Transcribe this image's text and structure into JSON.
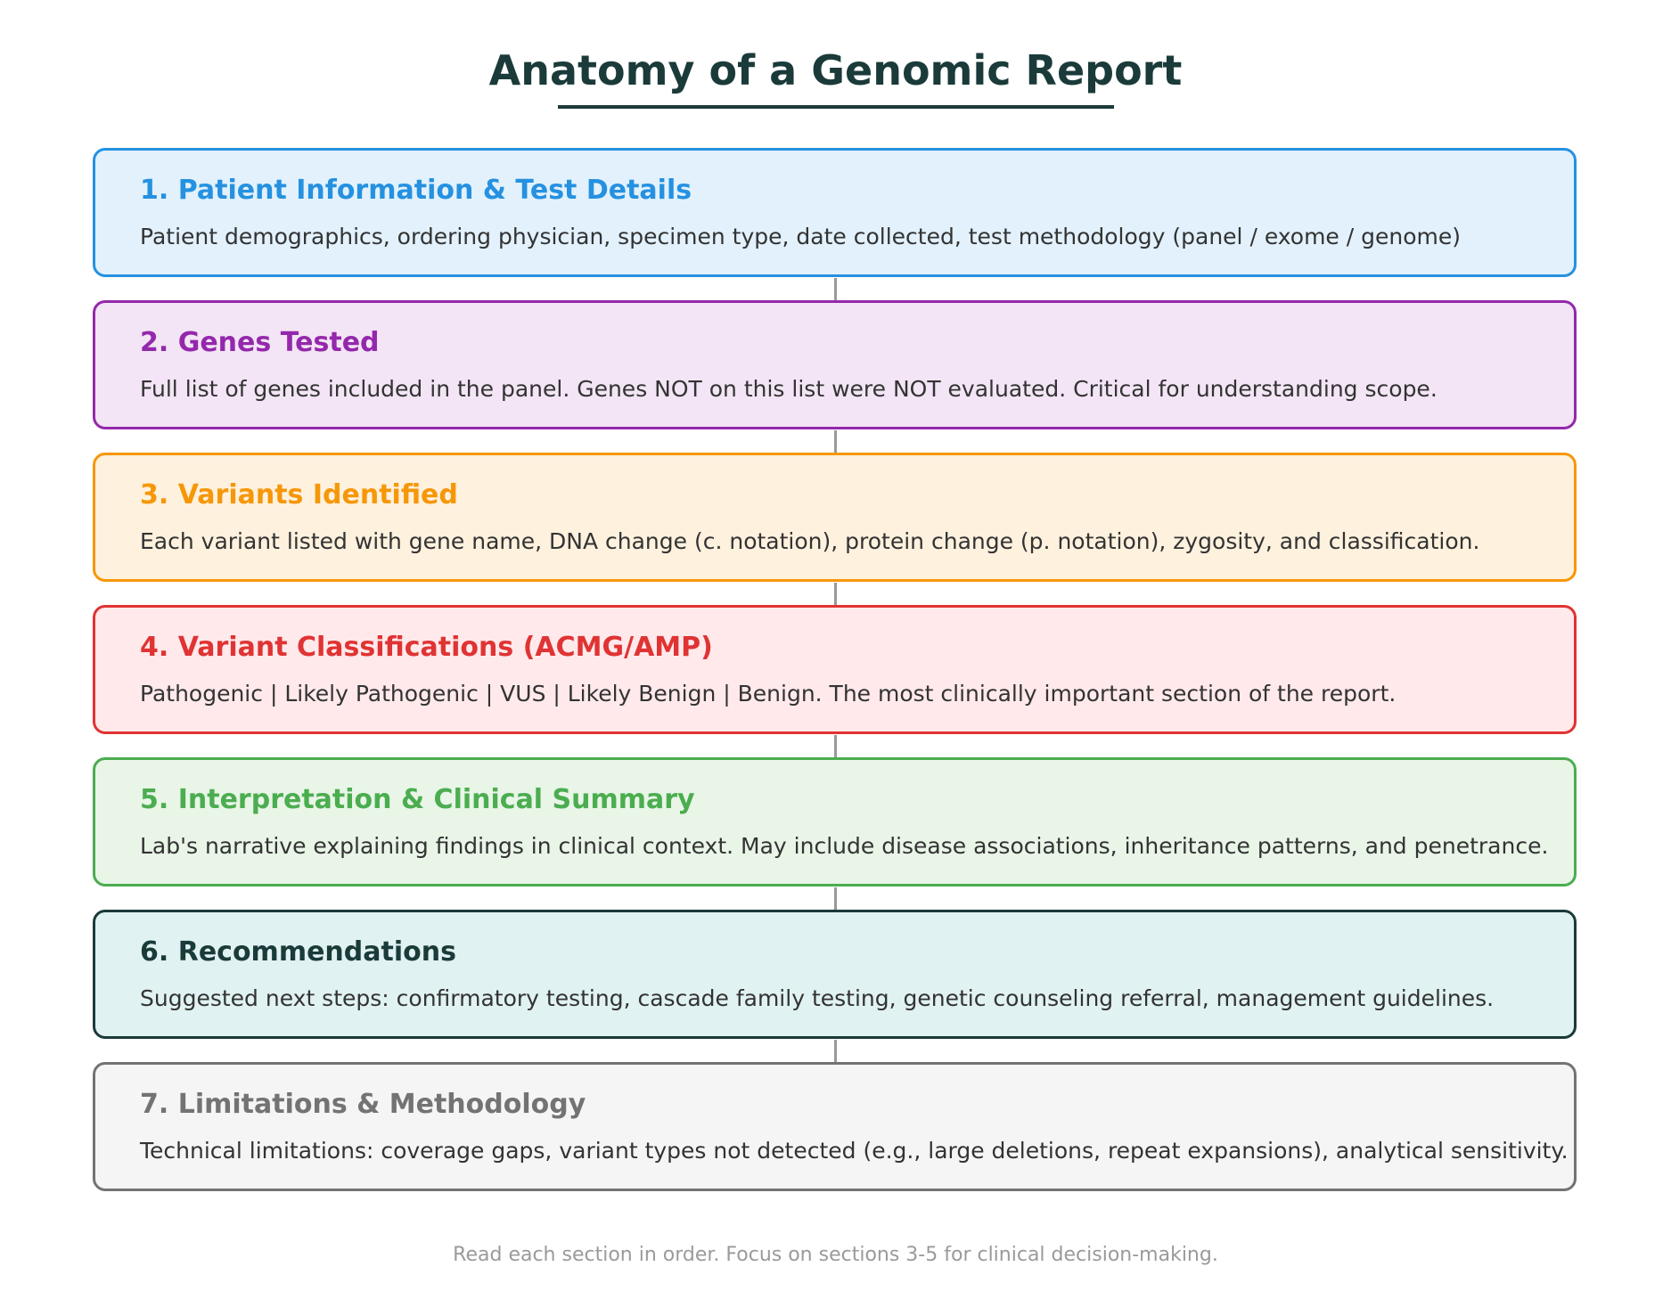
{
  "title": "Anatomy of a Genomic Report",
  "colors": {
    "title": "#1b3a3a",
    "connector": "#999999",
    "body_text": "#333333",
    "footer_text": "#9a9a9a"
  },
  "sections": [
    {
      "heading": "1. Patient Information & Test Details",
      "body": "Patient demographics, ordering physician, specimen type, date collected, test methodology (panel / exome / genome)",
      "accent": "#2591e0",
      "fill": "#e2f1fc"
    },
    {
      "heading": "2. Genes Tested",
      "body": "Full list of genes included in the panel. Genes NOT on this list were NOT evaluated. Critical for understanding scope.",
      "accent": "#9428ac",
      "fill": "#f3e5f5"
    },
    {
      "heading": "3. Variants Identified",
      "body": "Each variant listed with gene name, DNA change (c. notation), protein change (p. notation), zygosity, and classification.",
      "accent": "#f69708",
      "fill": "#fef1de"
    },
    {
      "heading": "4. Variant Classifications (ACMG/AMP)",
      "body": "Pathogenic | Likely Pathogenic | VUS | Likely Benign | Benign. The most clinically important section of the report.",
      "accent": "#e03333",
      "fill": "#ffe9eb"
    },
    {
      "heading": "5. Interpretation & Clinical Summary",
      "body": "Lab's narrative explaining findings in clinical context. May include disease associations, inheritance patterns, and penetrance.",
      "accent": "#4bad4f",
      "fill": "#e8f5e7"
    },
    {
      "heading": "6. Recommendations",
      "body": "Suggested next steps: confirmatory testing, cascade family testing, genetic counseling referral, management guidelines.",
      "accent": "#1b3a3a",
      "fill": "#e0f2f1"
    },
    {
      "heading": "7. Limitations & Methodology",
      "body": "Technical limitations: coverage gaps, variant types not detected (e.g., large deletions, repeat expansions), analytical sensitivity.",
      "accent": "#737373",
      "fill": "#f5f5f5"
    }
  ],
  "footer": "Read each section in order. Focus on sections 3-5 for clinical decision-making."
}
